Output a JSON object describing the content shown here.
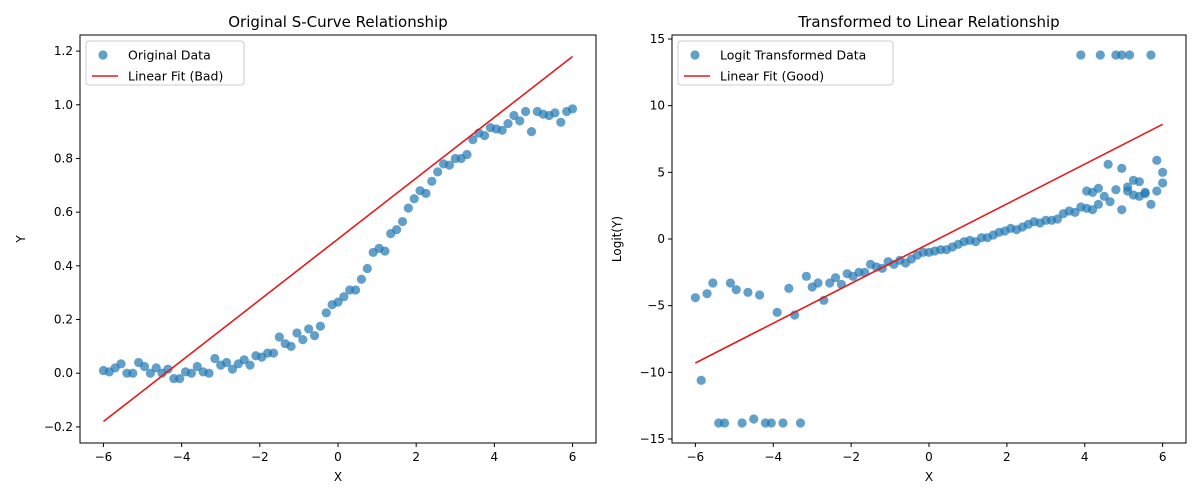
{
  "chart_data": [
    {
      "type": "scatter",
      "title": "Original S-Curve Relationship",
      "xlabel": "X",
      "ylabel": "Y",
      "xlim": [
        -6.6,
        6.6
      ],
      "ylim": [
        -0.26,
        1.26
      ],
      "xticks": [
        -6,
        -4,
        -2,
        0,
        2,
        4,
        6
      ],
      "yticks": [
        -0.2,
        0.0,
        0.2,
        0.4,
        0.6,
        0.8,
        1.0,
        1.2
      ],
      "xtick_labels": [
        "−6",
        "−4",
        "−2",
        "0",
        "2",
        "4",
        "6"
      ],
      "ytick_labels": [
        "−0.2",
        "0.0",
        "0.2",
        "0.4",
        "0.6",
        "0.8",
        "1.0",
        "1.2"
      ],
      "grid": false,
      "legend_position": "top-left",
      "series": [
        {
          "name": "Original Data",
          "kind": "scatter",
          "color": "#1f77b4",
          "x": [
            -6.0,
            -5.85,
            -5.7,
            -5.55,
            -5.4,
            -5.25,
            -5.1,
            -4.95,
            -4.8,
            -4.65,
            -4.5,
            -4.35,
            -4.2,
            -4.05,
            -3.9,
            -3.75,
            -3.6,
            -3.45,
            -3.3,
            -3.15,
            -3.0,
            -2.85,
            -2.7,
            -2.55,
            -2.4,
            -2.25,
            -2.1,
            -1.95,
            -1.8,
            -1.65,
            -1.5,
            -1.35,
            -1.2,
            -1.05,
            -0.9,
            -0.75,
            -0.6,
            -0.45,
            -0.3,
            -0.15,
            0.0,
            0.15,
            0.3,
            0.45,
            0.6,
            0.75,
            0.9,
            1.05,
            1.2,
            1.35,
            1.5,
            1.65,
            1.8,
            1.95,
            2.1,
            2.25,
            2.4,
            2.55,
            2.7,
            2.85,
            3.0,
            3.15,
            3.3,
            3.45,
            3.6,
            3.75,
            3.9,
            4.05,
            4.2,
            4.35,
            4.5,
            4.65,
            4.8,
            4.95,
            5.1,
            5.25,
            5.4,
            5.55,
            5.7,
            5.85,
            6.0
          ],
          "y": [
            0.01,
            0.005,
            0.02,
            0.035,
            0.0,
            0.0,
            0.04,
            0.025,
            0.0,
            0.02,
            0.0,
            0.015,
            -0.02,
            -0.02,
            0.005,
            0.0,
            0.025,
            0.005,
            0.0,
            0.055,
            0.03,
            0.04,
            0.015,
            0.035,
            0.05,
            0.03,
            0.065,
            0.06,
            0.075,
            0.075,
            0.135,
            0.11,
            0.1,
            0.15,
            0.125,
            0.165,
            0.14,
            0.175,
            0.225,
            0.255,
            0.265,
            0.285,
            0.31,
            0.31,
            0.35,
            0.39,
            0.45,
            0.465,
            0.455,
            0.52,
            0.535,
            0.565,
            0.615,
            0.65,
            0.68,
            0.67,
            0.715,
            0.75,
            0.78,
            0.775,
            0.8,
            0.8,
            0.815,
            0.87,
            0.895,
            0.885,
            0.915,
            0.91,
            0.905,
            0.93,
            0.96,
            0.94,
            0.975,
            0.9,
            0.975,
            0.965,
            0.96,
            0.97,
            0.935,
            0.975,
            0.985
          ],
          "note_pairs_start_at_index": 0
        },
        {
          "name": "Linear Fit (Bad)",
          "kind": "line",
          "color": "#e41a1c",
          "x": [
            -6.0,
            6.0
          ],
          "y": [
            -0.18,
            1.18
          ]
        }
      ]
    },
    {
      "type": "scatter",
      "title": "Transformed to Linear Relationship",
      "xlabel": "X",
      "ylabel": "Logit(Y)",
      "xlim": [
        -6.6,
        6.6
      ],
      "ylim": [
        -15.3,
        15.3
      ],
      "xticks": [
        -6,
        -4,
        -2,
        0,
        2,
        4,
        6
      ],
      "yticks": [
        -15,
        -10,
        -5,
        0,
        5,
        10,
        15
      ],
      "xtick_labels": [
        "−6",
        "−4",
        "−2",
        "0",
        "2",
        "4",
        "6"
      ],
      "ytick_labels": [
        "−15",
        "−10",
        "−5",
        "0",
        "5",
        "10",
        "15"
      ],
      "grid": false,
      "legend_position": "top-left",
      "series": [
        {
          "name": "Logit Transformed Data",
          "kind": "scatter",
          "color": "#1f77b4",
          "x": [
            -6.0,
            -5.85,
            -5.7,
            -5.55,
            -5.4,
            -5.25,
            -5.1,
            -4.95,
            -4.8,
            -4.65,
            -4.5,
            -4.35,
            -4.2,
            -4.05,
            -3.9,
            -3.75,
            -3.6,
            -3.45,
            -3.3,
            -3.15,
            -3.0,
            -2.85,
            -2.7,
            -2.55,
            -2.4,
            -2.25,
            -2.1,
            -1.95,
            -1.8,
            -1.65,
            -1.5,
            -1.35,
            -1.2,
            -1.05,
            -0.9,
            -0.75,
            -0.6,
            -0.45,
            -0.3,
            -0.15,
            0.0,
            0.15,
            0.3,
            0.45,
            0.6,
            0.75,
            0.9,
            1.05,
            1.2,
            1.35,
            1.5,
            1.65,
            1.8,
            1.95,
            2.1,
            2.25,
            2.4,
            2.55,
            2.7,
            2.85,
            3.0,
            3.15,
            3.3,
            3.45,
            3.6,
            3.75,
            3.9,
            4.05,
            4.2,
            4.35,
            4.5,
            4.65,
            4.8,
            4.95,
            5.1,
            5.25,
            5.4,
            5.55,
            5.7,
            5.85,
            6.0
          ],
          "y": [
            -4.4,
            -10.6,
            -4.1,
            -3.3,
            -13.8,
            -13.8,
            -3.3,
            -3.8,
            -13.8,
            -4.0,
            -13.5,
            -4.2,
            -13.8,
            -13.8,
            -5.5,
            -13.8,
            -3.7,
            -5.7,
            -13.8,
            -2.8,
            -3.6,
            -3.3,
            -4.6,
            -3.3,
            -2.9,
            -3.4,
            -2.6,
            -2.8,
            -2.5,
            -2.5,
            -1.9,
            -2.1,
            -2.2,
            -1.7,
            -1.9,
            -1.6,
            -1.8,
            -1.5,
            -1.2,
            -1.0,
            -1.0,
            -0.9,
            -0.8,
            -0.8,
            -0.6,
            -0.4,
            -0.2,
            -0.1,
            -0.2,
            0.1,
            0.1,
            0.3,
            0.5,
            0.6,
            0.8,
            0.7,
            0.9,
            1.1,
            1.3,
            1.2,
            1.4,
            1.4,
            1.5,
            1.9,
            2.1,
            2.0,
            2.4,
            2.3,
            2.2,
            2.6,
            3.2,
            2.8,
            3.7,
            2.2,
            3.6,
            3.3,
            3.2,
            3.5,
            2.6,
            3.6,
            4.2
          ],
          "extra_points": {
            "x": [
              3.9,
              4.05,
              4.2,
              4.35,
              4.6,
              4.8,
              4.95,
              5.1,
              5.25,
              5.4,
              5.55,
              5.7,
              5.85,
              6.0,
              4.4,
              4.95,
              5.15
            ],
            "y": [
              13.8,
              3.6,
              3.5,
              3.8,
              5.6,
              13.8,
              5.3,
              3.9,
              4.4,
              4.3,
              3.4,
              13.8,
              5.9,
              5.0,
              13.8,
              13.8,
              13.8
            ]
          }
        },
        {
          "name": "Linear Fit (Good)",
          "kind": "line",
          "color": "#e41a1c",
          "x": [
            -6.0,
            6.0
          ],
          "y": [
            -9.3,
            8.6
          ]
        }
      ]
    }
  ]
}
